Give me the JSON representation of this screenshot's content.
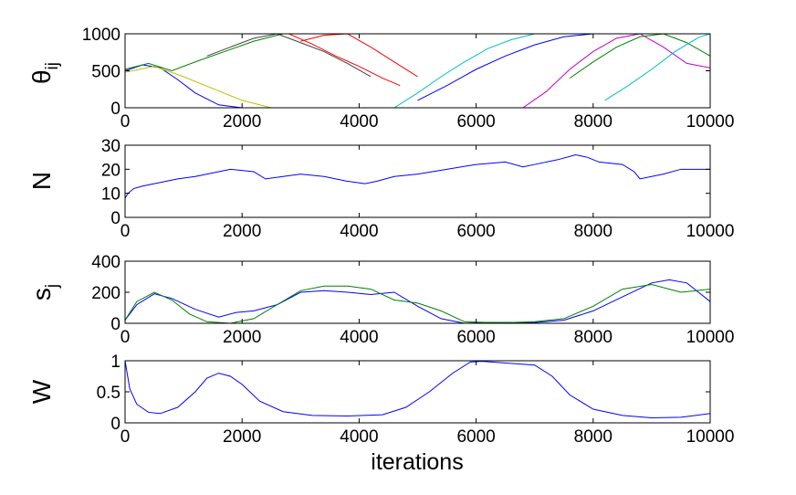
{
  "figure": {
    "background": "#ffffff",
    "xlabel": "iterations"
  },
  "chart_data": [
    {
      "type": "line",
      "ylabel": "θ",
      "ylabel_sub": "ij",
      "xlim": [
        0,
        10000
      ],
      "ylim": [
        0,
        1000
      ],
      "xticks": [
        0,
        2000,
        4000,
        6000,
        8000,
        10000
      ],
      "yticks": [
        0,
        500,
        1000
      ],
      "note": "many overlapping multicolored trajectories (one per agent/strategy), wrapping at 1000 back to 0",
      "colors": [
        "#0000ff",
        "#008000",
        "#ff0000",
        "#00bfbf",
        "#bf00bf",
        "#bfbf00",
        "#404040"
      ],
      "series": [
        {
          "x": [
            0,
            300,
            600,
            900,
            1200,
            1600,
            2000,
            2400
          ],
          "y": [
            500,
            580,
            540,
            380,
            200,
            40,
            0,
            0
          ]
        },
        {
          "x": [
            0,
            400,
            800,
            1200,
            1700,
            2200,
            2700,
            3000
          ],
          "y": [
            520,
            600,
            500,
            620,
            760,
            900,
            1000,
            1000
          ]
        },
        {
          "x": [
            2800,
            3200,
            3600,
            4000,
            4400,
            4700
          ],
          "y": [
            1000,
            860,
            700,
            560,
            400,
            300
          ]
        },
        {
          "x": [
            4600,
            5000,
            5400,
            5800,
            6200,
            6600,
            7000
          ],
          "y": [
            0,
            200,
            420,
            620,
            800,
            920,
            1000
          ]
        },
        {
          "x": [
            6800,
            7200,
            7600,
            8000,
            8400,
            8800,
            9200,
            9600,
            10000
          ],
          "y": [
            0,
            220,
            520,
            760,
            940,
            1000,
            820,
            600,
            540
          ]
        },
        {
          "x": [
            0,
            500,
            1000,
            1500,
            2000,
            2500
          ],
          "y": [
            480,
            560,
            420,
            260,
            100,
            0
          ]
        },
        {
          "x": [
            1400,
            1800,
            2200,
            2600,
            3000,
            3400,
            3800,
            4200
          ],
          "y": [
            700,
            820,
            940,
            1000,
            880,
            760,
            600,
            420
          ]
        },
        {
          "x": [
            5000,
            5500,
            6000,
            6500,
            7000,
            7500,
            8000
          ],
          "y": [
            100,
            300,
            520,
            700,
            850,
            960,
            1000
          ]
        },
        {
          "x": [
            7600,
            8000,
            8400,
            8800,
            9200,
            9600,
            10000
          ],
          "y": [
            400,
            620,
            820,
            960,
            1000,
            880,
            700
          ]
        },
        {
          "x": [
            3000,
            3400,
            3800,
            4200,
            4600,
            5000
          ],
          "y": [
            900,
            980,
            1000,
            820,
            620,
            420
          ]
        },
        {
          "x": [
            8200,
            8600,
            9000,
            9400,
            9800,
            10000
          ],
          "y": [
            100,
            300,
            520,
            760,
            950,
            1000
          ]
        }
      ]
    },
    {
      "type": "line",
      "ylabel": "N",
      "xlim": [
        0,
        10000
      ],
      "ylim": [
        0,
        30
      ],
      "xticks": [
        0,
        2000,
        4000,
        6000,
        8000,
        10000
      ],
      "yticks": [
        0,
        10,
        20,
        30
      ],
      "series": [
        {
          "color": "#0000ff",
          "x": [
            0,
            50,
            150,
            300,
            500,
            700,
            900,
            1200,
            1400,
            1800,
            2200,
            2400,
            2700,
            3000,
            3400,
            3800,
            4100,
            4300,
            4600,
            5000,
            5500,
            6000,
            6500,
            6800,
            7000,
            7400,
            7700,
            7900,
            8100,
            8500,
            8700,
            8800,
            9200,
            9500,
            10000
          ],
          "y": [
            8,
            10,
            12,
            13,
            14,
            15,
            16,
            17,
            18,
            20,
            19,
            16,
            17,
            18,
            17,
            15,
            14,
            15,
            17,
            18,
            20,
            22,
            23,
            21,
            22,
            24,
            26,
            25,
            23,
            22,
            19,
            16,
            18,
            20,
            20
          ]
        }
      ]
    },
    {
      "type": "line",
      "ylabel": "s",
      "ylabel_sub": "j",
      "xlim": [
        0,
        10000
      ],
      "ylim": [
        0,
        400
      ],
      "xticks": [
        0,
        2000,
        4000,
        6000,
        8000,
        10000
      ],
      "yticks": [
        0,
        200,
        400
      ],
      "series": [
        {
          "color": "#0000ff",
          "x": [
            0,
            200,
            500,
            800,
            1200,
            1600,
            1900,
            2200,
            2600,
            3000,
            3400,
            3800,
            4200,
            4600,
            5000,
            5400,
            5800,
            6200,
            6600,
            7000,
            7500,
            8000,
            8500,
            9000,
            9300,
            9600,
            10000
          ],
          "y": [
            20,
            120,
            190,
            160,
            90,
            40,
            70,
            80,
            120,
            200,
            210,
            200,
            185,
            200,
            110,
            30,
            0,
            5,
            5,
            5,
            20,
            80,
            170,
            260,
            280,
            260,
            140
          ]
        },
        {
          "color": "#008000",
          "x": [
            0,
            200,
            500,
            800,
            1100,
            1400,
            1800,
            2200,
            2600,
            3000,
            3400,
            3800,
            4200,
            4600,
            5000,
            5400,
            5800,
            6200,
            6600,
            7000,
            7500,
            8000,
            8500,
            9000,
            9500,
            10000
          ],
          "y": [
            20,
            140,
            200,
            150,
            60,
            10,
            0,
            30,
            120,
            210,
            240,
            240,
            220,
            150,
            130,
            80,
            10,
            5,
            5,
            10,
            30,
            110,
            220,
            250,
            200,
            220
          ]
        }
      ]
    },
    {
      "type": "line",
      "ylabel": "W",
      "xlim": [
        0,
        10000
      ],
      "ylim": [
        0,
        1
      ],
      "xticks": [
        0,
        2000,
        4000,
        6000,
        8000,
        10000
      ],
      "yticks": [
        0,
        0.5,
        1
      ],
      "series": [
        {
          "color": "#0000ff",
          "x": [
            0,
            80,
            200,
            400,
            600,
            900,
            1200,
            1400,
            1600,
            1800,
            2000,
            2300,
            2700,
            3200,
            3800,
            4400,
            4800,
            5200,
            5600,
            5900,
            6100,
            6400,
            7000,
            7300,
            7600,
            8000,
            8500,
            9000,
            9500,
            10000
          ],
          "y": [
            1.0,
            0.55,
            0.3,
            0.17,
            0.15,
            0.25,
            0.5,
            0.72,
            0.8,
            0.75,
            0.62,
            0.35,
            0.18,
            0.12,
            0.11,
            0.13,
            0.25,
            0.5,
            0.8,
            0.98,
            0.99,
            0.97,
            0.93,
            0.75,
            0.45,
            0.22,
            0.12,
            0.08,
            0.09,
            0.15
          ]
        }
      ]
    }
  ]
}
